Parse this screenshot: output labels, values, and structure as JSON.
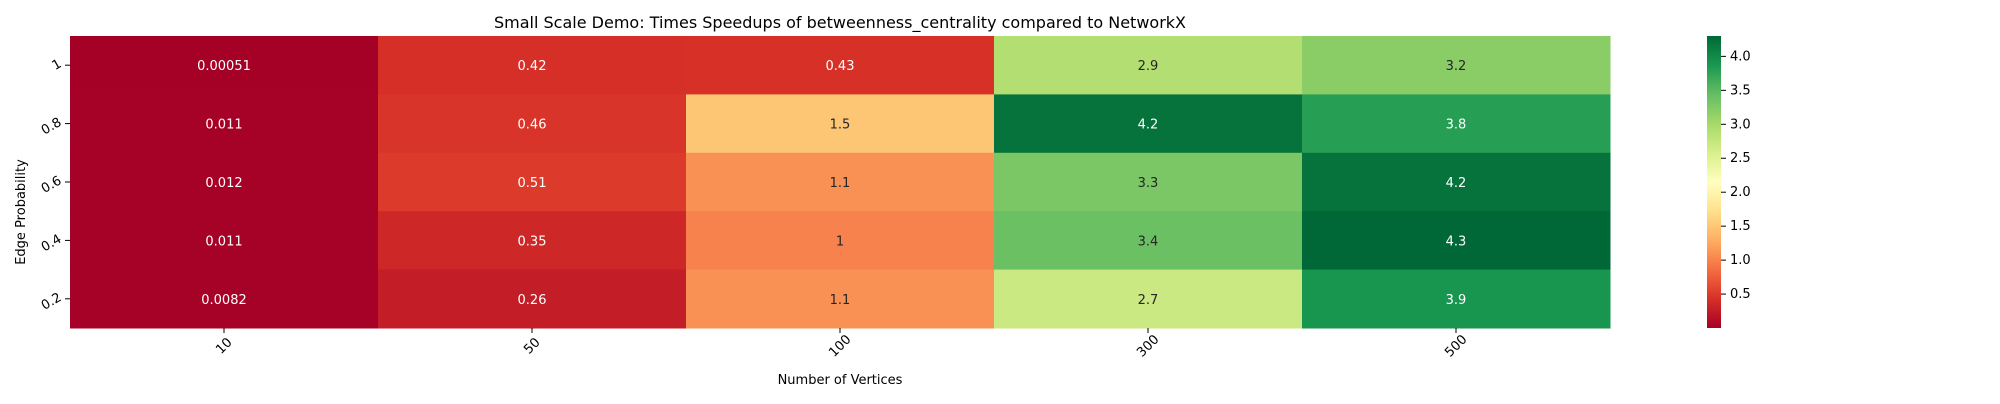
{
  "chart_data": {
    "type": "heatmap",
    "title": "Small Scale Demo: Times Speedups of betweenness_centrality compared to NetworkX",
    "xlabel": "Number of Vertices",
    "ylabel": "Edge Probability",
    "x_categories": [
      "10",
      "50",
      "100",
      "300",
      "500"
    ],
    "y_categories": [
      "1",
      "0.8",
      "0.6",
      "0.4",
      "0.2"
    ],
    "values": [
      [
        0.00051,
        0.42,
        0.43,
        2.9,
        3.2
      ],
      [
        0.011,
        0.46,
        1.5,
        4.2,
        3.8
      ],
      [
        0.012,
        0.51,
        1.1,
        3.3,
        4.2
      ],
      [
        0.011,
        0.35,
        1,
        3.4,
        4.3
      ],
      [
        0.0082,
        0.26,
        1.1,
        2.7,
        3.9
      ]
    ],
    "cell_labels": [
      [
        "0.00051",
        "0.42",
        "0.43",
        "2.9",
        "3.2"
      ],
      [
        "0.011",
        "0.46",
        "1.5",
        "4.2",
        "3.8"
      ],
      [
        "0.012",
        "0.51",
        "1.1",
        "3.3",
        "4.2"
      ],
      [
        "0.011",
        "0.35",
        "1",
        "3.4",
        "4.3"
      ],
      [
        "0.0082",
        "0.26",
        "1.1",
        "2.7",
        "3.9"
      ]
    ],
    "colormap": "RdYlGn",
    "colorbar": {
      "min": 0.00051,
      "max": 4.3,
      "ticks": [
        0.5,
        1.0,
        1.5,
        2.0,
        2.5,
        3.0,
        3.5,
        4.0
      ],
      "tick_labels": [
        "0.5",
        "1.0",
        "1.5",
        "2.0",
        "2.5",
        "3.0",
        "3.5",
        "4.0"
      ]
    },
    "legend": "colorbar-right",
    "grid": false
  }
}
